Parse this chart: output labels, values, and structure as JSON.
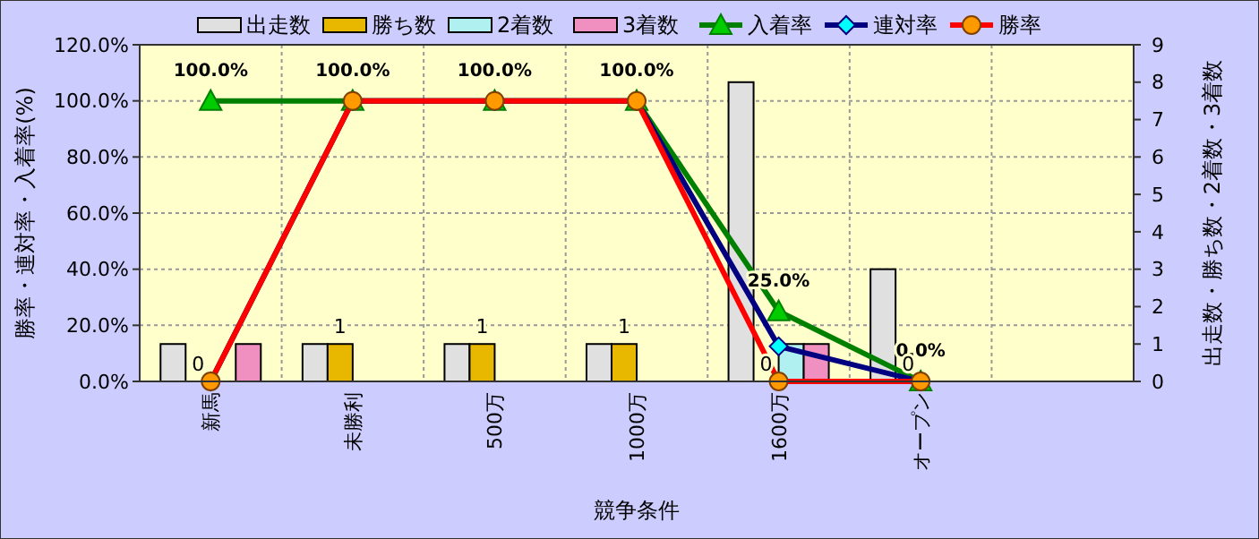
{
  "chart_data": {
    "type": "bar",
    "xlabel": "競争条件",
    "ylabel": "勝率・連対率・入着率(%)",
    "y2label": "出走数・勝ち数・2着数・3着数",
    "categories": [
      "新馬",
      "未勝利",
      "500万",
      "1000万",
      "1600万",
      "オープン",
      null
    ],
    "series": [
      {
        "name": "出走数",
        "axis": "y2",
        "color": "#e0e0e0",
        "values": [
          1,
          1,
          1,
          1,
          8,
          3,
          null
        ]
      },
      {
        "name": "勝ち数",
        "axis": "y2",
        "color": "#e8b800",
        "values": [
          0,
          1,
          1,
          1,
          0,
          0,
          null
        ],
        "value_labels": [
          "0",
          "1",
          "1",
          "1",
          "0",
          "0",
          null
        ]
      },
      {
        "name": "2着数",
        "axis": "y2",
        "color": "#b0f0f0",
        "values": [
          0,
          0,
          0,
          0,
          1,
          0,
          null
        ]
      },
      {
        "name": "3着数",
        "axis": "y2",
        "color": "#f090c0",
        "values": [
          1,
          0,
          0,
          0,
          1,
          0,
          null
        ]
      },
      {
        "name": "入着率",
        "type": "line",
        "axis": "y",
        "color": "#008000",
        "marker": "triangle",
        "values": [
          100,
          100,
          100,
          100,
          25,
          0,
          null
        ],
        "value_labels": [
          "100.0%",
          "100.0%",
          "100.0%",
          "100.0%",
          "25.0%",
          "0.0%",
          null
        ]
      },
      {
        "name": "連対率",
        "type": "line",
        "axis": "y",
        "color": "#000080",
        "marker": "diamond",
        "values": [
          0,
          100,
          100,
          100,
          12.5,
          0,
          null
        ]
      },
      {
        "name": "勝率",
        "type": "line",
        "axis": "y",
        "color": "#ff0000",
        "marker": "circle",
        "values": [
          0,
          100,
          100,
          100,
          0,
          0,
          null
        ]
      }
    ],
    "ylim": [
      0,
      120
    ],
    "yticks": [
      {
        "value": 0,
        "label": "0.0%"
      },
      {
        "value": 20,
        "label": "20.0%"
      },
      {
        "value": 40,
        "label": "40.0%"
      },
      {
        "value": 60,
        "label": "60.0%"
      },
      {
        "value": 80,
        "label": "80.0%"
      },
      {
        "value": 100,
        "label": "100.0%"
      },
      {
        "value": 120,
        "label": "120.0%"
      }
    ],
    "y2lim": [
      0,
      9
    ],
    "y2ticks": [
      0,
      1,
      2,
      3,
      4,
      5,
      6,
      7,
      8,
      9
    ],
    "grid": true,
    "legend": "top",
    "line_style": "solid"
  }
}
